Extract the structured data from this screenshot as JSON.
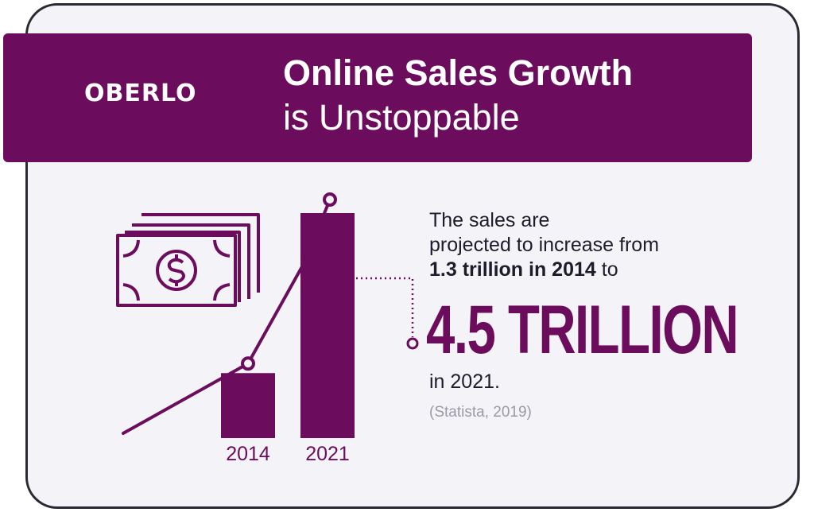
{
  "brand": "OBERLO",
  "title_line1": "Online Sales Growth",
  "title_line2": "is Unstoppable",
  "colors": {
    "brand": "#6b0d5c",
    "text": "#1c1c2a",
    "muted": "#9a9aa6",
    "background": "#f4f4f8"
  },
  "description": {
    "line1": "The sales are",
    "line2": "projected to increase from",
    "highlight": "1.3 trillion in 2014",
    "line3_suffix": " to",
    "big_value": "4.5 TRILLION",
    "after": "in 2021.",
    "source": "(Statista, 2019)"
  },
  "icons": [
    "money-stack-icon",
    "dollar-sign-icon"
  ],
  "chart_data": {
    "type": "bar",
    "categories": [
      "2014",
      "2021"
    ],
    "values": [
      1.3,
      4.5
    ],
    "unit": "trillion",
    "title": "",
    "xlabel": "",
    "ylabel": "",
    "ylim": [
      0,
      4.5
    ],
    "grid": false
  }
}
